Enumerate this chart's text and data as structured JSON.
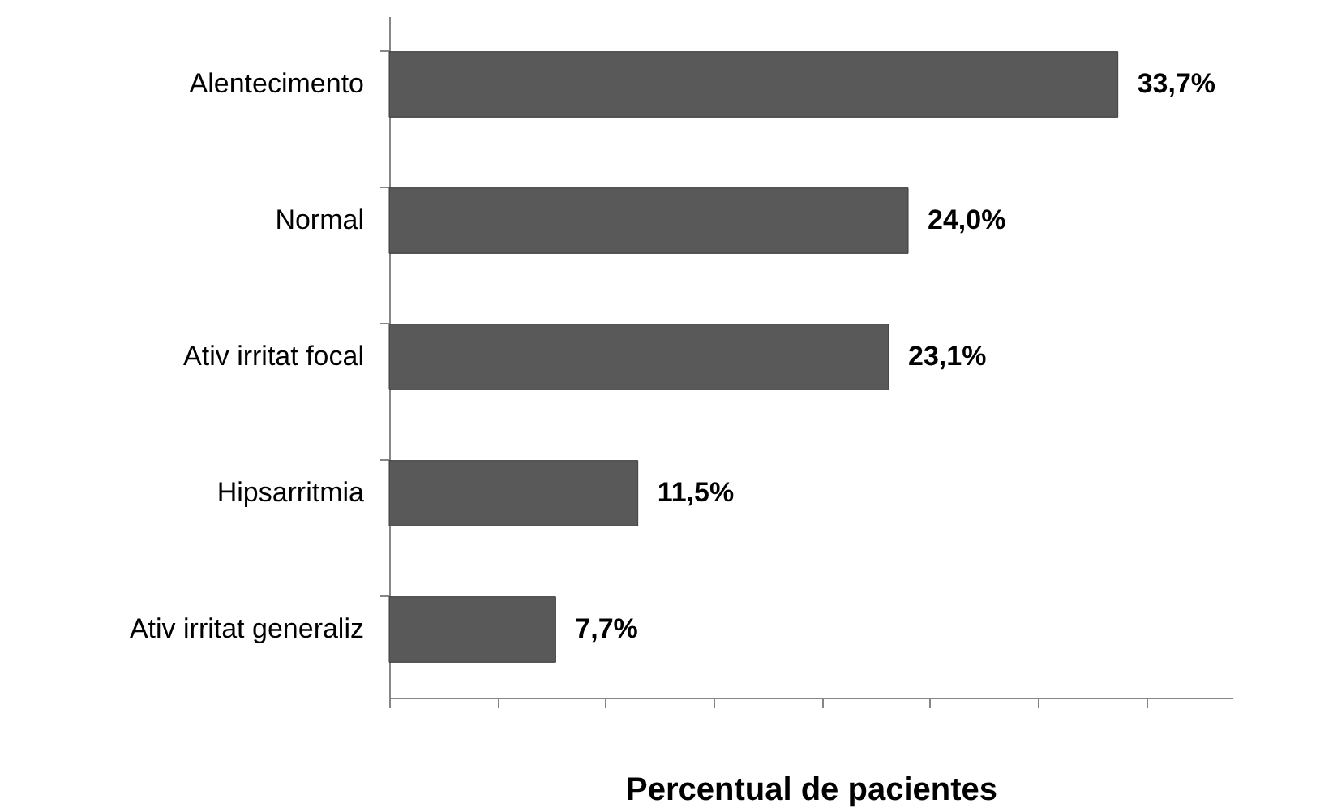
{
  "chart_data": {
    "type": "bar",
    "orientation": "horizontal",
    "xlabel": "Percentual de pacientes",
    "categories": [
      "Alentecimento",
      "Normal",
      "Ativ irritat focal",
      "Hipsarritmia",
      "Ativ irritat generaliz"
    ],
    "values": [
      33.7,
      24.0,
      23.1,
      11.5,
      7.7
    ],
    "value_labels": [
      "33,7%",
      "24,0%",
      "23,1%",
      "11,5%",
      "7,7%"
    ],
    "color": "#595959",
    "xlim": [
      0,
      39
    ],
    "xticks": [
      {
        "value": 0,
        "label": null
      },
      {
        "value": 5,
        "label": null
      },
      {
        "value": 10,
        "label": null
      },
      {
        "value": 15,
        "label": null
      },
      {
        "value": 20,
        "label": null
      },
      {
        "value": 25,
        "label": null
      },
      {
        "value": 30,
        "label": null
      },
      {
        "value": 35,
        "label": null
      }
    ],
    "tick_labels": "y",
    "grid": false
  }
}
